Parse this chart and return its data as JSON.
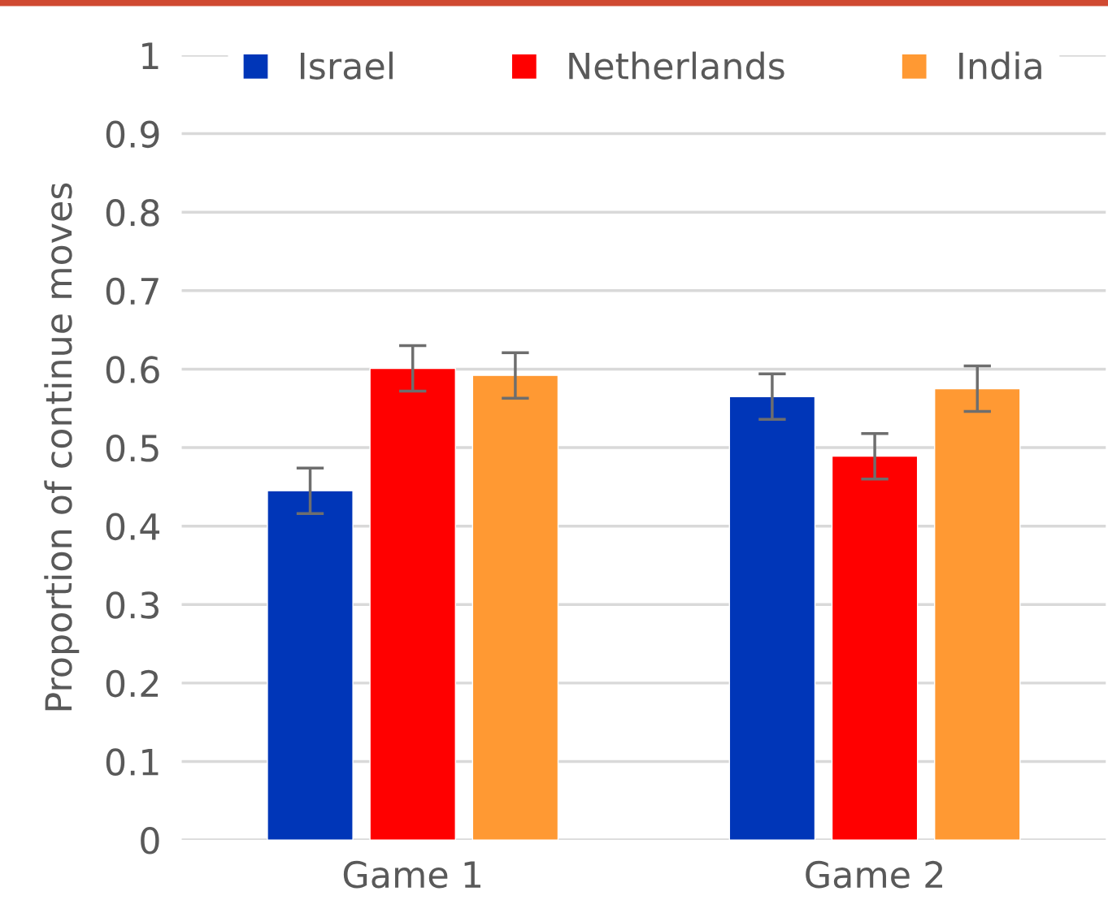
{
  "chart_data": {
    "type": "bar",
    "ylabel": "Proportion of continue moves",
    "categories": [
      "Game 1",
      "Game 2"
    ],
    "series": [
      {
        "name": "Israel",
        "color": "#0036b8",
        "values": [
          0.445,
          0.565
        ],
        "errors": [
          0.029,
          0.029
        ]
      },
      {
        "name": "Netherlands",
        "color": "#ff0000",
        "values": [
          0.601,
          0.489
        ],
        "errors": [
          0.029,
          0.029
        ]
      },
      {
        "name": "India",
        "color": "#ff9933",
        "values": [
          0.592,
          0.575
        ],
        "errors": [
          0.029,
          0.029
        ]
      }
    ],
    "ylim": [
      0,
      1
    ],
    "yticks": [
      0,
      0.1,
      0.2,
      0.3,
      0.4,
      0.5,
      0.6,
      0.7,
      0.8,
      0.9,
      1
    ],
    "grid": "y",
    "legend": "top"
  }
}
